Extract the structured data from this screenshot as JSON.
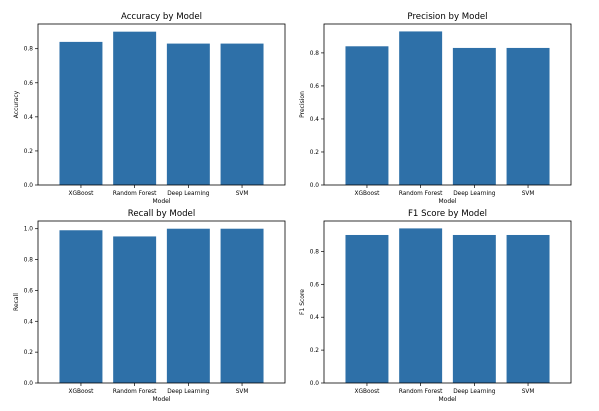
{
  "chart_data": [
    {
      "type": "bar",
      "title": "Accuracy by Model",
      "xlabel": "Model",
      "ylabel": "Accuracy",
      "categories": [
        "XGBoost",
        "Random Forest",
        "Deep Learning",
        "SVM"
      ],
      "values": [
        0.84,
        0.9,
        0.83,
        0.83
      ],
      "ylim": [
        0,
        0.945
      ],
      "yticks": [
        0.0,
        0.2,
        0.4,
        0.6,
        0.8
      ],
      "ytick_labels": [
        "0.0",
        "0.2",
        "0.4",
        "0.6",
        "0.8"
      ],
      "grid": false,
      "color": "#2e70a8"
    },
    {
      "type": "bar",
      "title": "Precision by Model",
      "xlabel": "Model",
      "ylabel": "Precision",
      "categories": [
        "XGBoost",
        "Random Forest",
        "Deep Learning",
        "SVM"
      ],
      "values": [
        0.84,
        0.93,
        0.83,
        0.83
      ],
      "ylim": [
        0,
        0.975
      ],
      "yticks": [
        0.0,
        0.2,
        0.4,
        0.6,
        0.8
      ],
      "ytick_labels": [
        "0.0",
        "0.2",
        "0.4",
        "0.6",
        "0.8"
      ],
      "grid": false,
      "color": "#2e70a8"
    },
    {
      "type": "bar",
      "title": "Recall by Model",
      "xlabel": "Model",
      "ylabel": "Recall",
      "categories": [
        "XGBoost",
        "Random Forest",
        "Deep Learning",
        "SVM"
      ],
      "values": [
        0.99,
        0.95,
        1.0,
        1.0
      ],
      "ylim": [
        0,
        1.05
      ],
      "yticks": [
        0.0,
        0.2,
        0.4,
        0.6,
        0.8,
        1.0
      ],
      "ytick_labels": [
        "0.0",
        "0.2",
        "0.4",
        "0.6",
        "0.8",
        "1.0"
      ],
      "grid": false,
      "color": "#2e70a8"
    },
    {
      "type": "bar",
      "title": "F1 Score by Model",
      "xlabel": "Model",
      "ylabel": "F1 Score",
      "categories": [
        "XGBoost",
        "Random Forest",
        "Deep Learning",
        "SVM"
      ],
      "values": [
        0.9,
        0.94,
        0.9,
        0.9
      ],
      "ylim": [
        0,
        0.985
      ],
      "yticks": [
        0.0,
        0.2,
        0.4,
        0.6,
        0.8
      ],
      "ytick_labels": [
        "0.0",
        "0.2",
        "0.4",
        "0.6",
        "0.8"
      ],
      "grid": false,
      "color": "#2e70a8"
    }
  ]
}
